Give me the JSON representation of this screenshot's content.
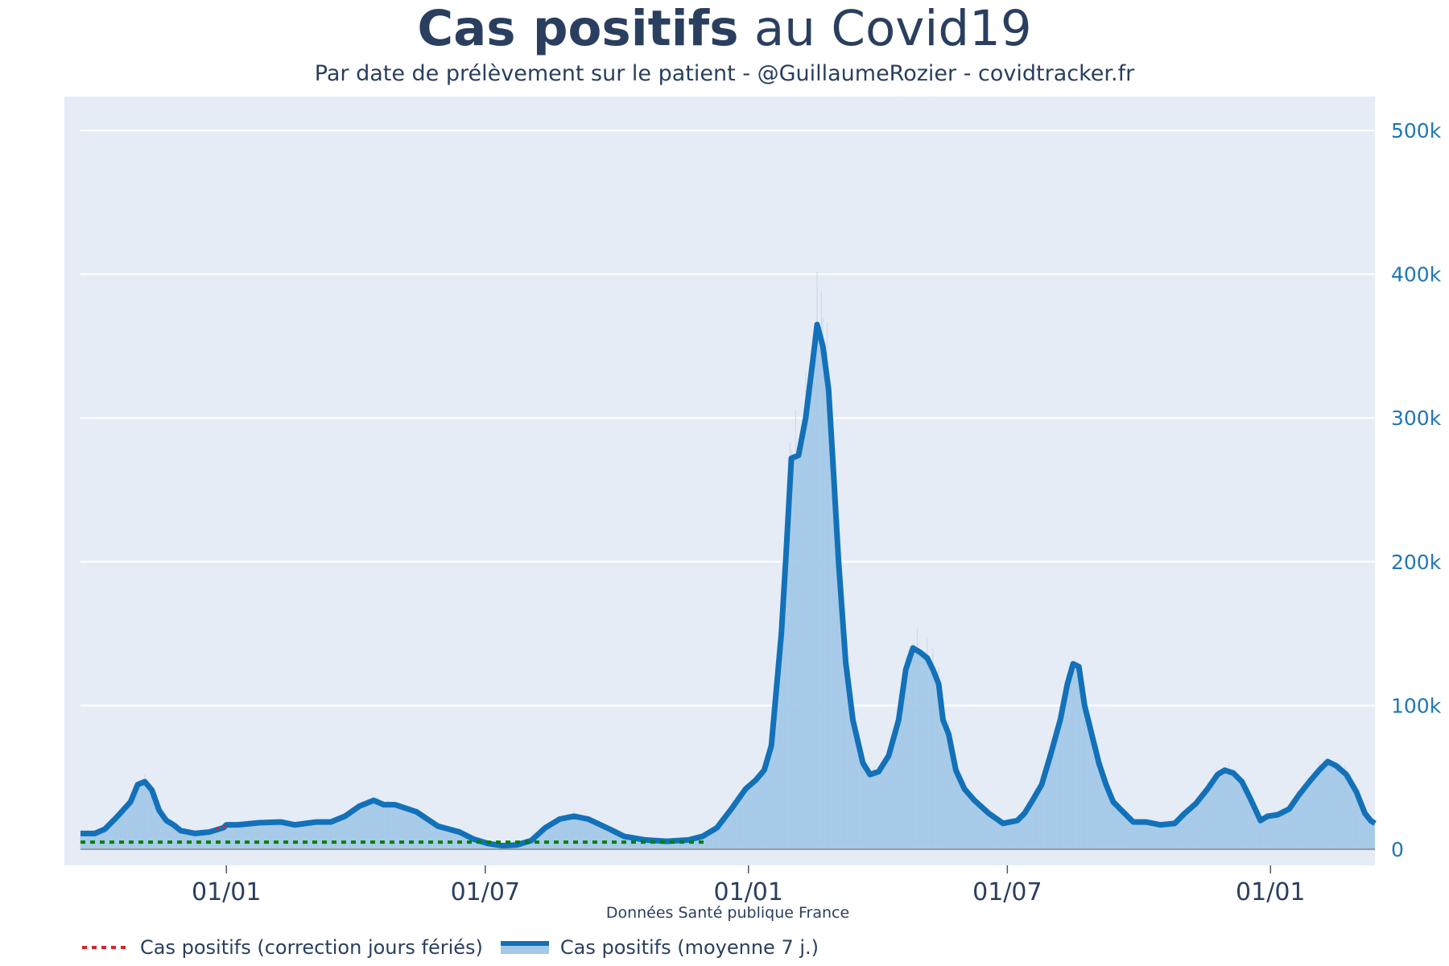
{
  "title": {
    "bold": "Cas positifs",
    "rest": " au Covid19"
  },
  "subtitle": "Par date de prélèvement sur le patient - @GuillaumeRozier - covidtracker.fr",
  "source": "Données Santé publique France",
  "colors": {
    "plot_bg": "#e5ecf6",
    "line": "#1271b8",
    "fill": "#a4c9e8",
    "axis_text": "#1f77b4",
    "x_text": "#2a3f5f",
    "red": "#d62728",
    "green": "#008000"
  },
  "chart_data": {
    "type": "area",
    "title": "Cas positifs au Covid19",
    "subtitle": "Par date de prélèvement sur le patient - @GuillaumeRozier - covidtracker.fr",
    "xlabel": "Données Santé publique France",
    "ylabel": "",
    "ylim": [
      0,
      520000
    ],
    "xlim_days": [
      0,
      905
    ],
    "y_axis_side": "right",
    "y_ticks": [
      {
        "value": 0,
        "label": "0"
      },
      {
        "value": 100000,
        "label": "100k"
      },
      {
        "value": 200000,
        "label": "200k"
      },
      {
        "value": 300000,
        "label": "300k"
      },
      {
        "value": 400000,
        "label": "400k"
      },
      {
        "value": 500000,
        "label": "500k"
      }
    ],
    "x_ticks": [
      {
        "day": 102,
        "label": "01/01"
      },
      {
        "day": 283,
        "label": "01/07"
      },
      {
        "day": 467,
        "label": "01/01"
      },
      {
        "day": 648,
        "label": "01/07"
      },
      {
        "day": 832,
        "label": "01/01"
      }
    ],
    "series": [
      {
        "name": "Cas positifs (moyenne 7 j.)",
        "style": "area+line",
        "points": [
          [
            0,
            11000
          ],
          [
            10,
            11000
          ],
          [
            17,
            14000
          ],
          [
            25,
            22000
          ],
          [
            35,
            33000
          ],
          [
            40,
            45000
          ],
          [
            45,
            47000
          ],
          [
            50,
            41000
          ],
          [
            55,
            27000
          ],
          [
            60,
            20000
          ],
          [
            65,
            17000
          ],
          [
            70,
            13000
          ],
          [
            80,
            11000
          ],
          [
            90,
            12000
          ],
          [
            100,
            15000
          ],
          [
            102,
            17000
          ],
          [
            110,
            17000
          ],
          [
            125,
            18500
          ],
          [
            140,
            19000
          ],
          [
            150,
            17000
          ],
          [
            165,
            19000
          ],
          [
            175,
            19000
          ],
          [
            185,
            23000
          ],
          [
            195,
            30000
          ],
          [
            205,
            34000
          ],
          [
            212,
            31000
          ],
          [
            220,
            31000
          ],
          [
            235,
            26000
          ],
          [
            250,
            16000
          ],
          [
            265,
            12000
          ],
          [
            275,
            7000
          ],
          [
            285,
            4000
          ],
          [
            295,
            2500
          ],
          [
            305,
            3000
          ],
          [
            315,
            6000
          ],
          [
            325,
            15000
          ],
          [
            335,
            21000
          ],
          [
            345,
            23000
          ],
          [
            355,
            21000
          ],
          [
            370,
            14000
          ],
          [
            380,
            9000
          ],
          [
            395,
            6500
          ],
          [
            410,
            5500
          ],
          [
            425,
            6500
          ],
          [
            435,
            9000
          ],
          [
            445,
            15000
          ],
          [
            455,
            28000
          ],
          [
            465,
            42000
          ],
          [
            472,
            48000
          ],
          [
            478,
            55000
          ],
          [
            483,
            72000
          ],
          [
            490,
            150000
          ],
          [
            493,
            200000
          ],
          [
            497,
            272000
          ],
          [
            502,
            274000
          ],
          [
            507,
            300000
          ],
          [
            512,
            340000
          ],
          [
            515,
            365000
          ],
          [
            519,
            350000
          ],
          [
            523,
            320000
          ],
          [
            526,
            270000
          ],
          [
            530,
            200000
          ],
          [
            535,
            130000
          ],
          [
            540,
            90000
          ],
          [
            547,
            60000
          ],
          [
            552,
            52000
          ],
          [
            558,
            54000
          ],
          [
            565,
            65000
          ],
          [
            572,
            90000
          ],
          [
            577,
            125000
          ],
          [
            582,
            140000
          ],
          [
            587,
            137000
          ],
          [
            592,
            133000
          ],
          [
            596,
            125000
          ],
          [
            600,
            115000
          ],
          [
            603,
            90000
          ],
          [
            607,
            80000
          ],
          [
            612,
            55000
          ],
          [
            618,
            42000
          ],
          [
            625,
            34000
          ],
          [
            635,
            25000
          ],
          [
            645,
            18000
          ],
          [
            655,
            20000
          ],
          [
            660,
            25000
          ],
          [
            665,
            33000
          ],
          [
            672,
            45000
          ],
          [
            678,
            65000
          ],
          [
            685,
            90000
          ],
          [
            690,
            115000
          ],
          [
            694,
            129000
          ],
          [
            698,
            127000
          ],
          [
            702,
            100000
          ],
          [
            707,
            80000
          ],
          [
            712,
            60000
          ],
          [
            717,
            45000
          ],
          [
            722,
            33000
          ],
          [
            730,
            25000
          ],
          [
            736,
            19000
          ],
          [
            745,
            19000
          ],
          [
            755,
            17000
          ],
          [
            765,
            18000
          ],
          [
            772,
            25000
          ],
          [
            780,
            32000
          ],
          [
            788,
            42000
          ],
          [
            795,
            52000
          ],
          [
            800,
            55000
          ],
          [
            806,
            53000
          ],
          [
            812,
            47000
          ],
          [
            818,
            35000
          ],
          [
            825,
            20000
          ],
          [
            830,
            23000
          ],
          [
            837,
            24000
          ],
          [
            845,
            28000
          ],
          [
            852,
            38000
          ],
          [
            860,
            48000
          ],
          [
            866,
            55000
          ],
          [
            872,
            61000
          ],
          [
            878,
            58000
          ],
          [
            885,
            52000
          ],
          [
            892,
            40000
          ],
          [
            898,
            25000
          ],
          [
            902,
            20000
          ],
          [
            905,
            18000
          ]
        ]
      },
      {
        "name": "Cas positifs (correction jours fériés)",
        "style": "dotted",
        "points": [
          [
            95,
            14500
          ],
          [
            102,
            16000
          ]
        ]
      },
      {
        "name": "",
        "style": "dotted-green",
        "points": [
          [
            0,
            5000
          ],
          [
            437,
            5000
          ]
        ]
      }
    ],
    "legend": [
      {
        "label": "Cas positifs (correction jours fériés)",
        "symbol": "dotted-red"
      },
      {
        "label": "Cas positifs (moyenne 7 j.)",
        "symbol": "blue-bar"
      }
    ],
    "legend_position": "bottom-left",
    "grid": true
  }
}
